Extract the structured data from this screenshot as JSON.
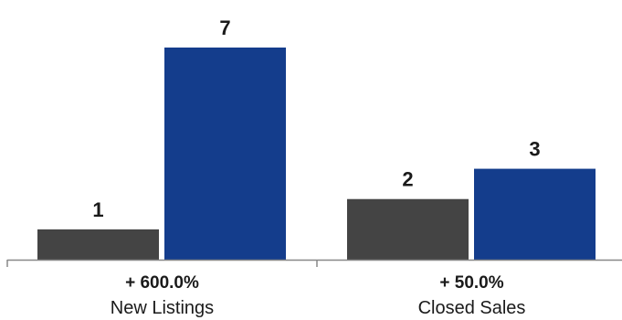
{
  "chart_data": {
    "type": "bar",
    "categories": [
      "New Listings",
      "Closed Sales"
    ],
    "changes": [
      "+ 600.0%",
      "+ 50.0%"
    ],
    "series": [
      {
        "values": [
          1,
          2
        ],
        "color": "#444444"
      },
      {
        "values": [
          7,
          3
        ],
        "color": "#143d8c"
      }
    ],
    "ylim": [
      0,
      7
    ],
    "grid": false,
    "legend": "none"
  }
}
